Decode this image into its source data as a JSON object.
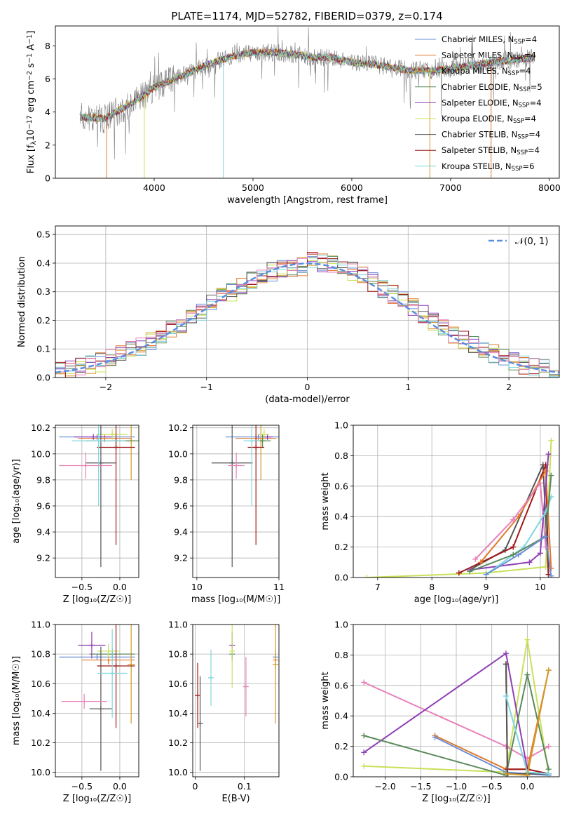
{
  "colors": {
    "chabrier_miles": "#6a8fd6",
    "salpeter_miles": "#e07a2e",
    "kroupa_miles": "#d39a2a",
    "chabrier_elodie": "#5a8a5a",
    "salpeter_elodie": "#8e3fb5",
    "kroupa_elodie": "#c8e05a",
    "chabrier_stelib": "#555555",
    "salpeter_stelib": "#a01818",
    "kroupa_stelib": "#7fd6e0",
    "pink": "#e880b8",
    "data": "#808080",
    "normal": "#5b8ee0",
    "grid": "#b0b0b0"
  },
  "chart_data": [
    {
      "id": "spectrum",
      "type": "line",
      "title": "PLATE=1174, MJD=52782, FIBERID=0379, z=0.174",
      "xlabel": "wavelength [Angstrom, rest frame]",
      "ylabel_parts": [
        "Flux [f",
        "λ",
        "10",
        "−17",
        " erg cm",
        "−2",
        " s",
        "−1",
        " A",
        "−1",
        "]"
      ],
      "xlim": [
        3000,
        8100
      ],
      "ylim": [
        0,
        9.2
      ],
      "xticks": [
        4000,
        5000,
        6000,
        7000,
        8000
      ],
      "yticks": [
        0,
        2,
        4,
        6,
        8
      ],
      "grid": false,
      "legend_position": "upper right",
      "legend": [
        {
          "model": "Chabrier MILES, N",
          "nssp": "=4",
          "color_key": "chabrier_miles"
        },
        {
          "model": "Salpeter MILES, N",
          "nssp": "=4",
          "color_key": "salpeter_miles"
        },
        {
          "model": "Kroupa MILES, N",
          "nssp": "=4",
          "color_key": "kroupa_miles"
        },
        {
          "model": "Chabrier ELODIE, N",
          "nssp": "=5",
          "color_key": "chabrier_elodie"
        },
        {
          "model": "Salpeter ELODIE, N",
          "nssp": "=4",
          "color_key": "salpeter_elodie"
        },
        {
          "model": "Kroupa ELODIE, N",
          "nssp": "=4",
          "color_key": "kroupa_elodie"
        },
        {
          "model": "Chabrier STELIB, N",
          "nssp": "=4",
          "color_key": "chabrier_stelib"
        },
        {
          "model": "Salpeter STELIB, N",
          "nssp": "=4",
          "color_key": "salpeter_stelib"
        },
        {
          "model": "Kroupa STELIB, N",
          "nssp": "=6",
          "color_key": "kroupa_stelib"
        }
      ],
      "nssp_subscript": "SSP",
      "continuum": {
        "x": [
          3250,
          3500,
          3700,
          3900,
          4000,
          4200,
          4400,
          4600,
          4800,
          5000,
          5200,
          5400,
          5600,
          5800,
          6000,
          6200,
          6400,
          6600,
          6800,
          7000,
          7200,
          7400,
          7600,
          7850
        ],
        "y": [
          3.7,
          3.6,
          4.3,
          5.0,
          5.5,
          6.0,
          6.5,
          7.0,
          7.4,
          7.6,
          7.6,
          7.5,
          7.3,
          7.3,
          7.0,
          6.9,
          6.7,
          6.5,
          6.5,
          6.6,
          6.8,
          7.0,
          7.1,
          7.3
        ]
      }
    },
    {
      "id": "residuals",
      "type": "line",
      "xlabel": "(data-model)/error",
      "ylabel": "Normed distribution",
      "xlim": [
        -2.5,
        2.5
      ],
      "ylim": [
        0,
        0.53
      ],
      "xticks": [
        -2,
        -1,
        0,
        1,
        2
      ],
      "yticks": [
        0.0,
        0.1,
        0.2,
        0.3,
        0.4,
        0.5
      ],
      "grid": true,
      "legend_position": "upper right",
      "legend": [
        {
          "label": "𝒩(0, 1)",
          "color_key": "normal",
          "style": "dashed"
        }
      ],
      "normal": {
        "mean": 0,
        "sigma": 1
      }
    },
    {
      "id": "age_vs_Z",
      "type": "scatter",
      "xlabel": "Z [log₁₀(Z/Z☉)]",
      "ylabel": "age  [log₁₀(age/yr)]",
      "xlim": [
        -0.85,
        0.25
      ],
      "ylim": [
        9.05,
        10.22
      ],
      "xticks": [
        -0.5,
        0.0
      ],
      "xtick_labels": [
        "−0.5",
        "0.0"
      ],
      "yticks": [
        9.2,
        9.4,
        9.6,
        9.8,
        10.0,
        10.2
      ],
      "grid": true,
      "points": [
        {
          "x": -0.3,
          "y": 10.13,
          "xerr": 0.5,
          "yerr": 0.02,
          "color_key": "chabrier_miles"
        },
        {
          "x": -0.2,
          "y": 10.12,
          "xerr": 0.35,
          "yerr": 0.03,
          "color_key": "salpeter_miles"
        },
        {
          "x": 0.15,
          "y": 10.1,
          "xerr": 0.05,
          "yerr": 0.3,
          "color_key": "kroupa_miles"
        },
        {
          "x": -0.05,
          "y": 10.1,
          "xerr": 0.4,
          "yerr": 0.05,
          "color_key": "chabrier_elodie"
        },
        {
          "x": -0.35,
          "y": 10.13,
          "xerr": 0.25,
          "yerr": 0.02,
          "color_key": "salpeter_elodie"
        },
        {
          "x": -0.1,
          "y": 10.15,
          "xerr": 0.2,
          "yerr": 0.04,
          "color_key": "kroupa_elodie"
        },
        {
          "x": -0.25,
          "y": 9.93,
          "xerr": 0.2,
          "yerr": 0.8,
          "color_key": "chabrier_stelib"
        },
        {
          "x": -0.05,
          "y": 10.05,
          "xerr": 0.25,
          "yerr": 0.75,
          "color_key": "salpeter_stelib"
        },
        {
          "x": -0.28,
          "y": 10.1,
          "xerr": 0.35,
          "yerr": 0.5,
          "color_key": "kroupa_stelib"
        },
        {
          "x": -0.45,
          "y": 9.91,
          "xerr": 0.35,
          "yerr": 0.1,
          "color_key": "pink"
        }
      ]
    },
    {
      "id": "age_vs_mass",
      "type": "scatter",
      "xlabel": "mass [log₁₀(M/M☉)]",
      "ylabel": "",
      "xlim": [
        9.95,
        11.0
      ],
      "ylim": [
        9.05,
        10.22
      ],
      "xticks": [
        10,
        11
      ],
      "yticks": [
        9.2,
        9.4,
        9.6,
        9.8,
        10.0,
        10.2
      ],
      "grid": true,
      "points": [
        {
          "x": 10.75,
          "y": 10.13,
          "xerr": 0.4,
          "yerr": 0.02,
          "color_key": "chabrier_miles"
        },
        {
          "x": 10.72,
          "y": 10.12,
          "xerr": 0.25,
          "yerr": 0.03,
          "color_key": "salpeter_miles"
        },
        {
          "x": 10.78,
          "y": 10.1,
          "xerr": 0.05,
          "yerr": 0.3,
          "color_key": "kroupa_miles"
        },
        {
          "x": 10.8,
          "y": 10.1,
          "xerr": 0.1,
          "yerr": 0.05,
          "color_key": "chabrier_elodie"
        },
        {
          "x": 10.86,
          "y": 10.13,
          "xerr": 0.06,
          "yerr": 0.02,
          "color_key": "salpeter_elodie"
        },
        {
          "x": 10.82,
          "y": 10.15,
          "xerr": 0.06,
          "yerr": 0.04,
          "color_key": "kroupa_elodie"
        },
        {
          "x": 10.43,
          "y": 9.93,
          "xerr": 0.25,
          "yerr": 0.8,
          "color_key": "chabrier_stelib"
        },
        {
          "x": 10.72,
          "y": 10.05,
          "xerr": 0.1,
          "yerr": 0.75,
          "color_key": "salpeter_stelib"
        },
        {
          "x": 10.67,
          "y": 10.1,
          "xerr": 0.1,
          "yerr": 0.5,
          "color_key": "kroupa_stelib"
        },
        {
          "x": 10.48,
          "y": 9.91,
          "xerr": 0.1,
          "yerr": 0.1,
          "color_key": "pink"
        }
      ]
    },
    {
      "id": "weight_vs_age",
      "type": "line",
      "xlabel": "age  [log₁₀(age/yr)]",
      "ylabel": "mass weight",
      "xlim": [
        6.55,
        10.35
      ],
      "ylim": [
        0,
        1.0
      ],
      "xticks": [
        7,
        8,
        9,
        10
      ],
      "yticks": [
        0.0,
        0.2,
        0.4,
        0.6,
        0.8,
        1.0
      ],
      "grid": true,
      "series": [
        {
          "color_key": "kroupa_elodie",
          "x": [
            6.8,
            9.0,
            10.1,
            10.2
          ],
          "y": [
            0.0,
            0.03,
            0.07,
            0.9
          ]
        },
        {
          "color_key": "chabrier_stelib",
          "x": [
            8.7,
            9.35,
            10.05,
            10.15
          ],
          "y": [
            0.05,
            0.18,
            0.74,
            0.02
          ]
        },
        {
          "color_key": "salpeter_stelib",
          "x": [
            8.5,
            9.5,
            10.1,
            10.15
          ],
          "y": [
            0.03,
            0.2,
            0.74,
            0.02
          ]
        },
        {
          "color_key": "salpeter_miles",
          "x": [
            8.9,
            9.6,
            10.1,
            10.2
          ],
          "y": [
            0.1,
            0.4,
            0.7,
            0.06
          ]
        },
        {
          "color_key": "pink",
          "x": [
            8.8,
            9.5,
            10.0,
            10.1
          ],
          "y": [
            0.12,
            0.38,
            0.62,
            0.2
          ]
        },
        {
          "color_key": "salpeter_elodie",
          "x": [
            8.7,
            9.8,
            10.0,
            10.15
          ],
          "y": [
            0.05,
            0.1,
            0.16,
            0.81
          ]
        },
        {
          "color_key": "kroupa_stelib",
          "x": [
            9.0,
            9.7,
            10.1,
            10.2
          ],
          "y": [
            0.02,
            0.2,
            0.43,
            0.53
          ]
        },
        {
          "color_key": "chabrier_elodie",
          "x": [
            8.7,
            9.5,
            10.1,
            10.2
          ],
          "y": [
            0.04,
            0.15,
            0.27,
            0.67
          ]
        },
        {
          "color_key": "chabrier_miles",
          "x": [
            9.0,
            9.6,
            10.1,
            10.2
          ],
          "y": [
            0.02,
            0.15,
            0.27,
            0.01
          ]
        }
      ]
    },
    {
      "id": "mass_vs_Z",
      "type": "scatter",
      "xlabel": "Z [log₁₀(Z/Z☉)]",
      "ylabel": "mass [log₁₀(M/M☉)]",
      "xlim": [
        -0.85,
        0.25
      ],
      "ylim": [
        9.97,
        11.0
      ],
      "xticks": [
        -0.5,
        0.0
      ],
      "xtick_labels": [
        "−0.5",
        "0.0"
      ],
      "yticks": [
        10.0,
        10.2,
        10.4,
        10.6,
        10.8,
        11.0
      ],
      "grid": true,
      "points": [
        {
          "x": -0.3,
          "y": 10.78,
          "xerr": 0.5,
          "yerr": 0.02,
          "color_key": "chabrier_miles"
        },
        {
          "x": -0.15,
          "y": 10.76,
          "xerr": 0.35,
          "yerr": 0.03,
          "color_key": "salpeter_miles"
        },
        {
          "x": 0.15,
          "y": 10.73,
          "xerr": 0.05,
          "yerr": 0.4,
          "color_key": "kroupa_miles"
        },
        {
          "x": -0.1,
          "y": 10.8,
          "xerr": 0.3,
          "yerr": 0.04,
          "color_key": "chabrier_elodie"
        },
        {
          "x": -0.37,
          "y": 10.86,
          "xerr": 0.18,
          "yerr": 0.09,
          "color_key": "salpeter_elodie"
        },
        {
          "x": -0.15,
          "y": 10.82,
          "xerr": 0.15,
          "yerr": 0.05,
          "color_key": "kroupa_elodie"
        },
        {
          "x": -0.25,
          "y": 10.43,
          "xerr": 0.15,
          "yerr": 0.42,
          "color_key": "chabrier_stelib"
        },
        {
          "x": -0.05,
          "y": 10.72,
          "xerr": 0.25,
          "yerr": 0.42,
          "color_key": "salpeter_stelib"
        },
        {
          "x": -0.1,
          "y": 10.67,
          "xerr": 0.2,
          "yerr": 0.3,
          "color_key": "kroupa_stelib"
        },
        {
          "x": -0.47,
          "y": 10.48,
          "xerr": 0.3,
          "yerr": 0.05,
          "color_key": "pink"
        }
      ]
    },
    {
      "id": "mass_vs_ebv",
      "type": "scatter",
      "xlabel": "E(B-V)",
      "ylabel": "",
      "xlim": [
        -0.005,
        0.17
      ],
      "ylim": [
        9.97,
        11.0
      ],
      "xticks": [
        0.0,
        0.1
      ],
      "yticks": [
        10.0,
        10.2,
        10.4,
        10.6,
        10.8,
        11.0
      ],
      "grid": true,
      "points": [
        {
          "x": 0.163,
          "y": 10.78,
          "xerr": 0.0,
          "yerr": 0.02,
          "color_key": "chabrier_miles"
        },
        {
          "x": 0.163,
          "y": 10.76,
          "xerr": 0.0,
          "yerr": 0.06,
          "color_key": "salpeter_miles"
        },
        {
          "x": 0.163,
          "y": 10.73,
          "xerr": 0.0,
          "yerr": 0.4,
          "color_key": "kroupa_miles"
        },
        {
          "x": 0.075,
          "y": 10.8,
          "xerr": 0.0,
          "yerr": 0.05,
          "color_key": "chabrier_elodie"
        },
        {
          "x": 0.075,
          "y": 10.86,
          "xerr": 0.0,
          "yerr": 0.09,
          "color_key": "salpeter_elodie"
        },
        {
          "x": 0.075,
          "y": 10.82,
          "xerr": 0.0,
          "yerr": 0.25,
          "color_key": "kroupa_elodie"
        },
        {
          "x": 0.01,
          "y": 10.33,
          "xerr": 0.0,
          "yerr": 0.32,
          "color_key": "chabrier_stelib"
        },
        {
          "x": 0.005,
          "y": 10.52,
          "xerr": 0.0,
          "yerr": 0.22,
          "color_key": "salpeter_stelib"
        },
        {
          "x": 0.032,
          "y": 10.64,
          "xerr": 0.0,
          "yerr": 0.19,
          "color_key": "kroupa_stelib"
        },
        {
          "x": 0.103,
          "y": 10.58,
          "xerr": 0.0,
          "yerr": 0.2,
          "color_key": "pink"
        }
      ]
    },
    {
      "id": "weight_vs_Z",
      "type": "line",
      "xlabel": "Z [log₁₀(Z/Z☉)]",
      "ylabel": "mass weight",
      "xlim": [
        -2.45,
        0.45
      ],
      "ylim": [
        0,
        1.0
      ],
      "xticks": [
        -2.0,
        -1.5,
        -1.0,
        -0.5,
        0.0
      ],
      "xtick_labels": [
        "−2.0",
        "−1.5",
        "−1.0",
        "−0.5",
        "0.0"
      ],
      "yticks": [
        0.0,
        0.2,
        0.4,
        0.6,
        0.8,
        1.0
      ],
      "grid": true,
      "series": [
        {
          "color_key": "kroupa_elodie",
          "x": [
            -2.3,
            -0.3,
            0.0,
            0.3
          ],
          "y": [
            0.07,
            0.03,
            0.9,
            0.02
          ]
        },
        {
          "color_key": "pink",
          "x": [
            -2.3,
            -0.3,
            0.0,
            0.3
          ],
          "y": [
            0.62,
            0.2,
            0.12,
            0.2
          ]
        },
        {
          "color_key": "salpeter_elodie",
          "x": [
            -2.3,
            -0.3,
            0.0,
            0.3
          ],
          "y": [
            0.16,
            0.81,
            0.05,
            0.02
          ]
        },
        {
          "color_key": "chabrier_elodie",
          "x": [
            -2.3,
            -0.3,
            0.0,
            0.3
          ],
          "y": [
            0.27,
            0.01,
            0.67,
            0.05
          ]
        },
        {
          "color_key": "salpeter_miles",
          "x": [
            -1.3,
            -0.3,
            0.0,
            0.3
          ],
          "y": [
            0.27,
            0.05,
            0.05,
            0.7
          ]
        },
        {
          "color_key": "chabrier_miles",
          "x": [
            -1.3,
            -0.3,
            0.0,
            0.3
          ],
          "y": [
            0.26,
            0.03,
            0.02,
            0.01
          ]
        },
        {
          "color_key": "salpeter_stelib",
          "x": [
            -0.3,
            -0.28,
            0.0,
            0.3
          ],
          "y": [
            0.74,
            0.05,
            0.05,
            0.02
          ]
        },
        {
          "color_key": "chabrier_stelib",
          "x": [
            -0.3,
            -0.28,
            0.0,
            0.3
          ],
          "y": [
            0.74,
            0.02,
            0.02,
            0.02
          ]
        },
        {
          "color_key": "kroupa_stelib",
          "x": [
            -0.3,
            0.0,
            0.3
          ],
          "y": [
            0.53,
            0.03,
            0.02
          ]
        },
        {
          "color_key": "kroupa_miles",
          "x": [
            -0.3,
            0.0,
            0.3
          ],
          "y": [
            0.02,
            0.01,
            0.7
          ]
        }
      ]
    }
  ]
}
